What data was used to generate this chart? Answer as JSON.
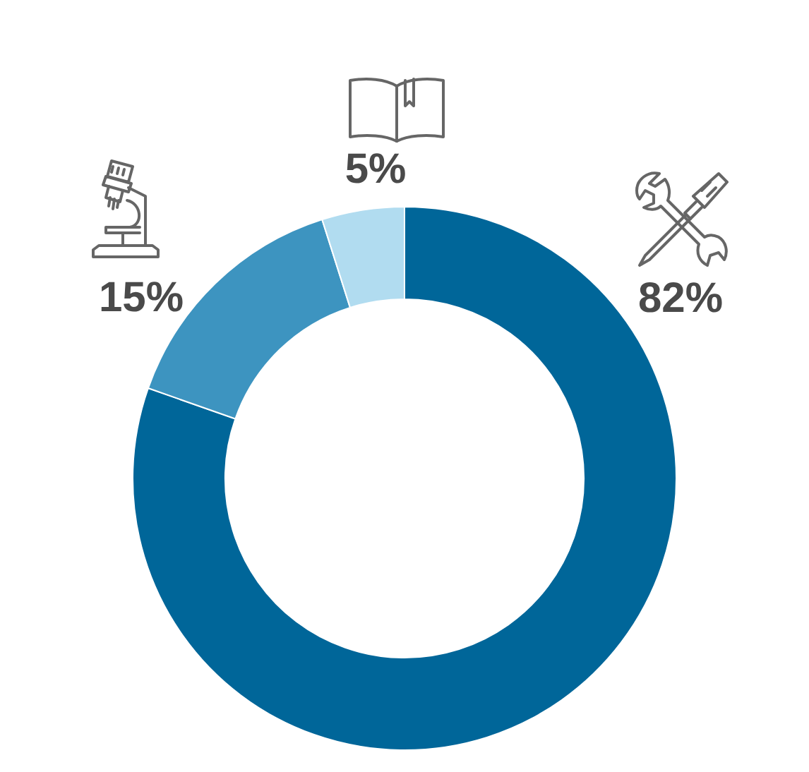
{
  "chart_data": {
    "type": "donut",
    "categories": [
      null,
      null,
      null
    ],
    "values": [
      82,
      15,
      5
    ],
    "colors": [
      "#006699",
      "#3d94c0",
      "#b1dcf0"
    ],
    "value_labels": [
      "82%",
      "15%",
      "5%"
    ]
  }
}
